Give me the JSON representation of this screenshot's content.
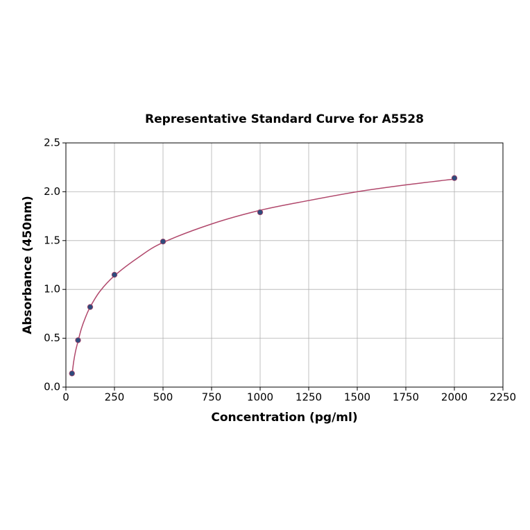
{
  "chart_data": {
    "type": "scatter",
    "title": "Representative Standard Curve for A5528",
    "x_label": "Concentration (pg/ml)",
    "y_label": "Absorbance (450nm)",
    "x": [
      31.25,
      62.5,
      125,
      250,
      500,
      1000,
      2000
    ],
    "values": [
      0.14,
      0.48,
      0.82,
      1.15,
      1.49,
      1.79,
      2.14
    ],
    "color": "#2f4b7c",
    "curve": {
      "color": "#b0476b",
      "x": [
        31.25,
        40,
        50,
        62.5,
        80,
        100,
        125,
        175,
        250,
        375,
        500,
        750,
        1000,
        1250,
        1500,
        1750,
        2000
      ],
      "y": [
        0.12,
        0.26,
        0.37,
        0.47,
        0.6,
        0.71,
        0.82,
        0.98,
        1.14,
        1.33,
        1.48,
        1.67,
        1.81,
        1.91,
        2.0,
        2.07,
        2.13
      ]
    },
    "xlim": [
      0,
      2250
    ],
    "xticks": [
      0,
      250,
      500,
      750,
      1000,
      1250,
      1500,
      1750,
      2000,
      2250
    ],
    "ylim": [
      0,
      2.5
    ],
    "yticks": [
      {
        "value": 0,
        "label": "0.0"
      },
      0.5,
      {
        "value": 1,
        "label": "1.0"
      },
      1.5,
      {
        "value": 2,
        "label": "2.0"
      },
      2.5
    ],
    "grid": true
  }
}
